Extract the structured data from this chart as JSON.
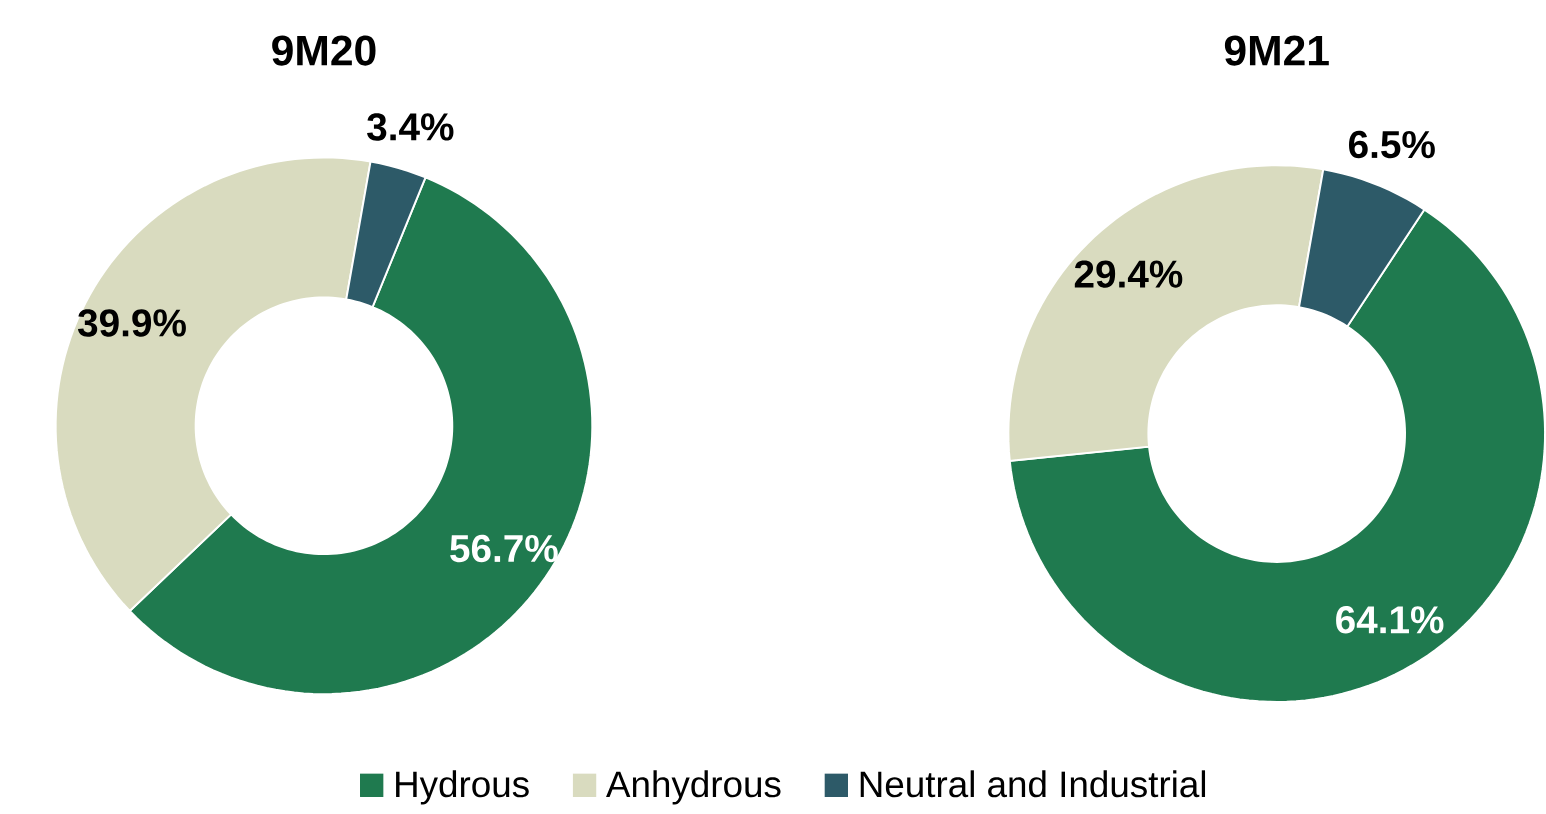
{
  "chart_data": [
    {
      "type": "donut",
      "title": "9M20",
      "categories": [
        "Hydrous",
        "Anhydrous",
        "Neutral and Industrial"
      ],
      "values": [
        56.7,
        39.9,
        3.4
      ],
      "colors": [
        "#1f7a4f",
        "#d9dbbf",
        "#2d5a68"
      ],
      "value_labels": [
        "56.7%",
        "39.9%",
        "3.4%"
      ],
      "legend": "bottom"
    },
    {
      "type": "donut",
      "title": "9M21",
      "values": [
        64.1,
        29.4,
        6.5
      ],
      "colors": [
        "#1f7a4f",
        "#d9dbbf",
        "#2d5a68"
      ],
      "value_labels": [
        "64.1%",
        "29.4%",
        "6.5%"
      ]
    }
  ]
}
